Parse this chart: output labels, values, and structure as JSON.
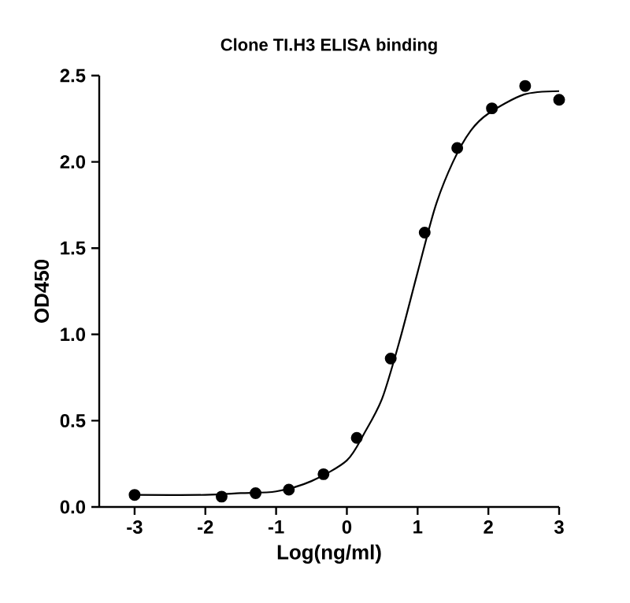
{
  "chart_data": {
    "type": "scatter",
    "title": "Clone TI.H3 ELISA binding",
    "xlabel": "Log(ng/ml)",
    "ylabel": "OD450",
    "xlim": [
      -3.5,
      3
    ],
    "ylim": [
      0,
      2.5
    ],
    "xticks": [
      -3,
      -2,
      -1,
      0,
      1,
      2,
      3
    ],
    "yticks": [
      {
        "value": 0,
        "label": "0.0"
      },
      {
        "value": 0.5,
        "label": "0.5"
      },
      {
        "value": 1,
        "label": "1.0"
      },
      {
        "value": 1.5,
        "label": "1.5"
      },
      {
        "value": 2,
        "label": "2.0"
      },
      {
        "value": 2.5,
        "label": "2.5"
      }
    ],
    "grid": false,
    "series": [
      {
        "marker": "circle",
        "color": "#000000",
        "x": [
          -3,
          -1.77,
          -1.29,
          -0.82,
          -0.33,
          0.14,
          0.62,
          1.1,
          1.56,
          2.05,
          2.52,
          3.0
        ],
        "values": [
          0.07,
          0.06,
          0.08,
          0.1,
          0.19,
          0.4,
          0.86,
          1.59,
          2.08,
          2.31,
          2.44,
          2.36
        ]
      },
      {
        "type": "line",
        "marker": "none",
        "line_style": "solid",
        "color": "#000000",
        "x": [
          -3,
          -2,
          -1.5,
          -1,
          -0.5,
          0,
          0.25,
          0.5,
          0.75,
          1.0,
          1.25,
          1.5,
          1.75,
          2.0,
          2.5,
          3.0
        ],
        "values": [
          0.07,
          0.07,
          0.08,
          0.09,
          0.15,
          0.27,
          0.43,
          0.63,
          0.97,
          1.36,
          1.74,
          2.0,
          2.18,
          2.28,
          2.39,
          2.41
        ]
      }
    ]
  }
}
